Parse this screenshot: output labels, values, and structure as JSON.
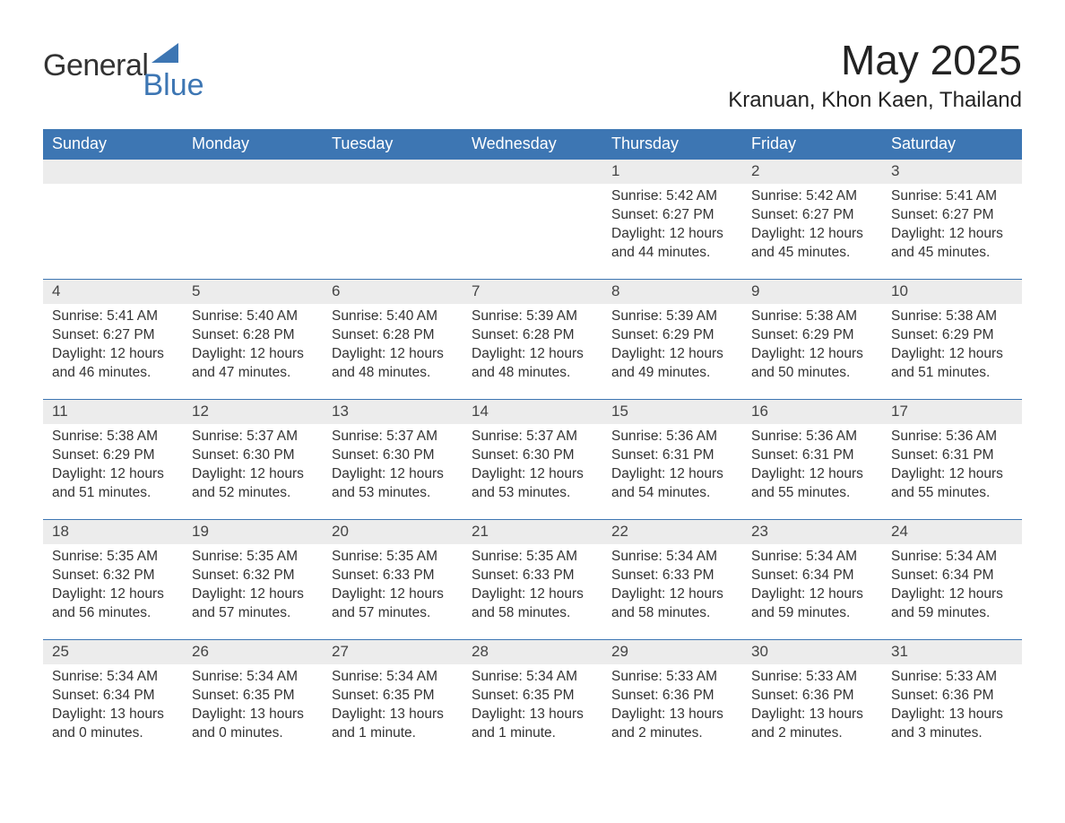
{
  "brand": {
    "word1": "General",
    "word2": "Blue",
    "accent_color": "#3d76b3"
  },
  "title": "May 2025",
  "location": "Kranuan, Khon Kaen, Thailand",
  "colors": {
    "header_bg": "#3d76b3",
    "header_fg": "#ffffff",
    "daynum_bg": "#ececec",
    "text": "#333333",
    "rule": "#3d76b3",
    "page_bg": "#ffffff"
  },
  "grid": {
    "cols": 7,
    "rows": 5,
    "first_day_index": 4
  },
  "days_of_week": [
    "Sunday",
    "Monday",
    "Tuesday",
    "Wednesday",
    "Thursday",
    "Friday",
    "Saturday"
  ],
  "days": [
    {
      "n": 1,
      "sunrise": "5:42 AM",
      "sunset": "6:27 PM",
      "daylight": "12 hours and 44 minutes."
    },
    {
      "n": 2,
      "sunrise": "5:42 AM",
      "sunset": "6:27 PM",
      "daylight": "12 hours and 45 minutes."
    },
    {
      "n": 3,
      "sunrise": "5:41 AM",
      "sunset": "6:27 PM",
      "daylight": "12 hours and 45 minutes."
    },
    {
      "n": 4,
      "sunrise": "5:41 AM",
      "sunset": "6:27 PM",
      "daylight": "12 hours and 46 minutes."
    },
    {
      "n": 5,
      "sunrise": "5:40 AM",
      "sunset": "6:28 PM",
      "daylight": "12 hours and 47 minutes."
    },
    {
      "n": 6,
      "sunrise": "5:40 AM",
      "sunset": "6:28 PM",
      "daylight": "12 hours and 48 minutes."
    },
    {
      "n": 7,
      "sunrise": "5:39 AM",
      "sunset": "6:28 PM",
      "daylight": "12 hours and 48 minutes."
    },
    {
      "n": 8,
      "sunrise": "5:39 AM",
      "sunset": "6:29 PM",
      "daylight": "12 hours and 49 minutes."
    },
    {
      "n": 9,
      "sunrise": "5:38 AM",
      "sunset": "6:29 PM",
      "daylight": "12 hours and 50 minutes."
    },
    {
      "n": 10,
      "sunrise": "5:38 AM",
      "sunset": "6:29 PM",
      "daylight": "12 hours and 51 minutes."
    },
    {
      "n": 11,
      "sunrise": "5:38 AM",
      "sunset": "6:29 PM",
      "daylight": "12 hours and 51 minutes."
    },
    {
      "n": 12,
      "sunrise": "5:37 AM",
      "sunset": "6:30 PM",
      "daylight": "12 hours and 52 minutes."
    },
    {
      "n": 13,
      "sunrise": "5:37 AM",
      "sunset": "6:30 PM",
      "daylight": "12 hours and 53 minutes."
    },
    {
      "n": 14,
      "sunrise": "5:37 AM",
      "sunset": "6:30 PM",
      "daylight": "12 hours and 53 minutes."
    },
    {
      "n": 15,
      "sunrise": "5:36 AM",
      "sunset": "6:31 PM",
      "daylight": "12 hours and 54 minutes."
    },
    {
      "n": 16,
      "sunrise": "5:36 AM",
      "sunset": "6:31 PM",
      "daylight": "12 hours and 55 minutes."
    },
    {
      "n": 17,
      "sunrise": "5:36 AM",
      "sunset": "6:31 PM",
      "daylight": "12 hours and 55 minutes."
    },
    {
      "n": 18,
      "sunrise": "5:35 AM",
      "sunset": "6:32 PM",
      "daylight": "12 hours and 56 minutes."
    },
    {
      "n": 19,
      "sunrise": "5:35 AM",
      "sunset": "6:32 PM",
      "daylight": "12 hours and 57 minutes."
    },
    {
      "n": 20,
      "sunrise": "5:35 AM",
      "sunset": "6:33 PM",
      "daylight": "12 hours and 57 minutes."
    },
    {
      "n": 21,
      "sunrise": "5:35 AM",
      "sunset": "6:33 PM",
      "daylight": "12 hours and 58 minutes."
    },
    {
      "n": 22,
      "sunrise": "5:34 AM",
      "sunset": "6:33 PM",
      "daylight": "12 hours and 58 minutes."
    },
    {
      "n": 23,
      "sunrise": "5:34 AM",
      "sunset": "6:34 PM",
      "daylight": "12 hours and 59 minutes."
    },
    {
      "n": 24,
      "sunrise": "5:34 AM",
      "sunset": "6:34 PM",
      "daylight": "12 hours and 59 minutes."
    },
    {
      "n": 25,
      "sunrise": "5:34 AM",
      "sunset": "6:34 PM",
      "daylight": "13 hours and 0 minutes."
    },
    {
      "n": 26,
      "sunrise": "5:34 AM",
      "sunset": "6:35 PM",
      "daylight": "13 hours and 0 minutes."
    },
    {
      "n": 27,
      "sunrise": "5:34 AM",
      "sunset": "6:35 PM",
      "daylight": "13 hours and 1 minute."
    },
    {
      "n": 28,
      "sunrise": "5:34 AM",
      "sunset": "6:35 PM",
      "daylight": "13 hours and 1 minute."
    },
    {
      "n": 29,
      "sunrise": "5:33 AM",
      "sunset": "6:36 PM",
      "daylight": "13 hours and 2 minutes."
    },
    {
      "n": 30,
      "sunrise": "5:33 AM",
      "sunset": "6:36 PM",
      "daylight": "13 hours and 2 minutes."
    },
    {
      "n": 31,
      "sunrise": "5:33 AM",
      "sunset": "6:36 PM",
      "daylight": "13 hours and 3 minutes."
    }
  ],
  "labels": {
    "sunrise": "Sunrise:",
    "sunset": "Sunset:",
    "daylight": "Daylight:"
  }
}
